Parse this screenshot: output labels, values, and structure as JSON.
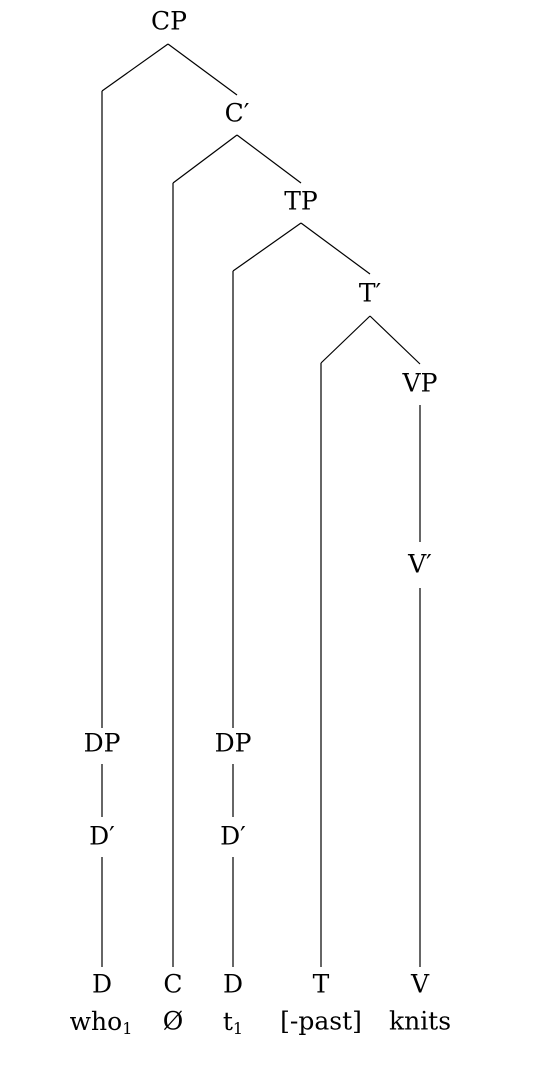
{
  "tree": {
    "nodes": {
      "CP": "CP",
      "C_bar": "C′",
      "TP": "TP",
      "T_bar": "T′",
      "VP": "VP",
      "V_bar": "V′",
      "DP1": "DP",
      "D_bar1": "D′",
      "D1": "D",
      "DP2": "DP",
      "D_bar2": "D′",
      "D2": "D",
      "C": "C",
      "T": "T",
      "V": "V"
    },
    "words": {
      "who": "who",
      "who_index": "1",
      "null_c": "Ø",
      "trace": "t",
      "trace_index": "1",
      "tense": "[-past]",
      "verb": "knits"
    }
  }
}
